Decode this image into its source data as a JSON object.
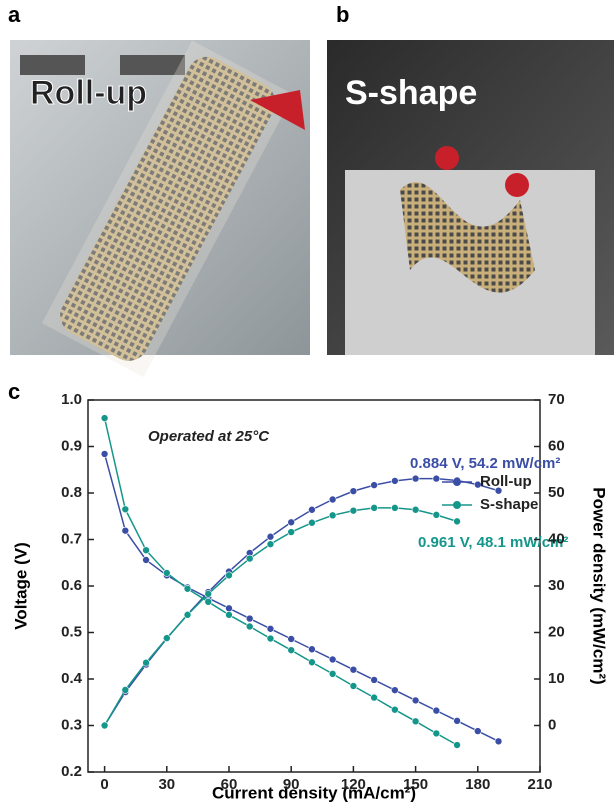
{
  "panels": {
    "a": "a",
    "b": "b",
    "photo_a_label": "Roll-up",
    "photo_b_label": "S-shape"
  },
  "chart_data": {
    "type": "line",
    "panel_label": "c",
    "x_label": "Current density (mA/cm²)",
    "y_label": "Voltage (V)",
    "y2_label": "Power density (mW/cm²)",
    "annotations": [
      "Operated at 25°C",
      "0.884 V, 54.2 mW/cm²",
      "0.961 V, 48.1 mW/cm²"
    ],
    "xlim": [
      -8,
      210
    ],
    "xticks": [
      0,
      30,
      60,
      90,
      120,
      150,
      180,
      210
    ],
    "ylim": [
      0.2,
      1.0
    ],
    "yticks": [
      0.2,
      0.3,
      0.4,
      0.5,
      0.6,
      0.7,
      0.8,
      0.9,
      {
        "value": 1.0,
        "label": "1.0"
      }
    ],
    "y2lim": [
      -10,
      70
    ],
    "y2ticks": [
      0,
      10,
      20,
      30,
      40,
      50,
      60,
      70
    ],
    "series": [
      {
        "name": "Roll-up",
        "color": "#3b4ea6",
        "x": [
          0,
          10,
          20,
          30,
          40,
          50,
          60,
          70,
          80,
          90,
          100,
          110,
          120,
          130,
          140,
          150,
          160,
          170,
          180,
          190
        ],
        "values": [
          0.884,
          0.719,
          0.656,
          0.623,
          0.597,
          0.574,
          0.552,
          0.53,
          0.508,
          0.486,
          0.464,
          0.442,
          0.42,
          0.398,
          0.376,
          0.354,
          0.332,
          0.31,
          0.288,
          0.266
        ],
        "y2_values": [
          0,
          7.19,
          13.1,
          18.7,
          23.9,
          28.7,
          33.1,
          37.1,
          40.6,
          43.7,
          46.4,
          48.6,
          50.4,
          51.7,
          52.6,
          53.1,
          53.1,
          52.7,
          51.8,
          50.5
        ]
      },
      {
        "name": "S-shape",
        "color": "#14968a",
        "x": [
          0,
          10,
          20,
          30,
          40,
          50,
          60,
          70,
          80,
          90,
          100,
          110,
          120,
          130,
          140,
          150,
          160,
          170
        ],
        "values": [
          0.961,
          0.765,
          0.677,
          0.628,
          0.594,
          0.566,
          0.538,
          0.513,
          0.487,
          0.462,
          0.436,
          0.411,
          0.385,
          0.36,
          0.334,
          0.309,
          0.283,
          0.258
        ],
        "y2_values": [
          0,
          7.65,
          13.5,
          18.8,
          23.8,
          28.3,
          32.3,
          35.9,
          39.0,
          41.6,
          43.6,
          45.2,
          46.2,
          46.8,
          46.8,
          46.4,
          45.3,
          43.9
        ]
      }
    ]
  }
}
